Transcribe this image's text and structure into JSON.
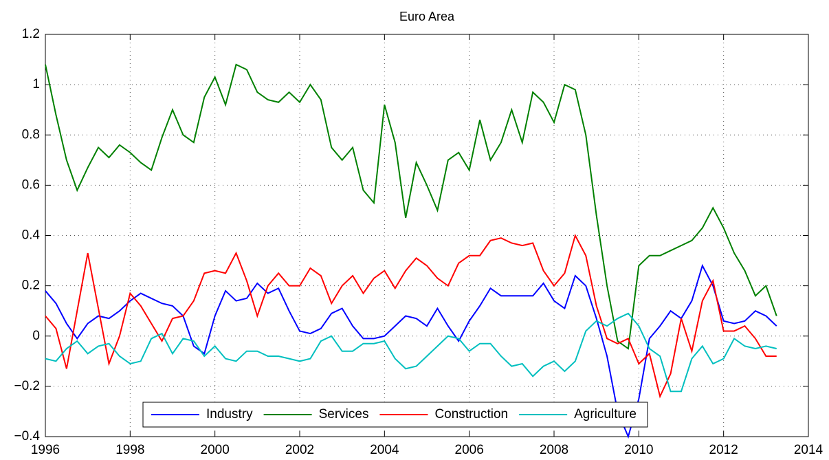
{
  "chart_data": {
    "type": "line",
    "title": "Euro Area",
    "x": [
      1996,
      1996.25,
      1996.5,
      1996.75,
      1997,
      1997.25,
      1997.5,
      1997.75,
      1998,
      1998.25,
      1998.5,
      1998.75,
      1999,
      1999.25,
      1999.5,
      1999.75,
      2000,
      2000.25,
      2000.5,
      2000.75,
      2001,
      2001.25,
      2001.5,
      2001.75,
      2002,
      2002.25,
      2002.5,
      2002.75,
      2003,
      2003.25,
      2003.5,
      2003.75,
      2004,
      2004.25,
      2004.5,
      2004.75,
      2005,
      2005.25,
      2005.5,
      2005.75,
      2006,
      2006.25,
      2006.5,
      2006.75,
      2007,
      2007.25,
      2007.5,
      2007.75,
      2008,
      2008.25,
      2008.5,
      2008.75,
      2009,
      2009.25,
      2009.5,
      2009.75,
      2010,
      2010.25,
      2010.5,
      2010.75,
      2011,
      2011.25,
      2011.5,
      2011.75,
      2012,
      2012.25,
      2012.5,
      2012.75,
      2013,
      2013.25
    ],
    "series": [
      {
        "name": "Industry",
        "color": "#0000ff",
        "values": [
          0.18,
          0.13,
          0.05,
          -0.01,
          0.05,
          0.08,
          0.07,
          0.1,
          0.14,
          0.17,
          0.15,
          0.13,
          0.12,
          0.08,
          -0.04,
          -0.07,
          0.08,
          0.18,
          0.14,
          0.15,
          0.21,
          0.17,
          0.19,
          0.1,
          0.02,
          0.01,
          0.03,
          0.09,
          0.11,
          0.04,
          -0.01,
          -0.01,
          0.0,
          0.04,
          0.08,
          0.07,
          0.04,
          0.11,
          0.04,
          -0.02,
          0.06,
          0.12,
          0.19,
          0.16,
          0.16,
          0.16,
          0.16,
          0.21,
          0.14,
          0.11,
          0.24,
          0.2,
          0.07,
          -0.08,
          -0.3,
          -0.4,
          -0.25,
          -0.01,
          0.04,
          0.1,
          0.07,
          0.14,
          0.28,
          0.2,
          0.06,
          0.05,
          0.06,
          0.1,
          0.08,
          0.04
        ]
      },
      {
        "name": "Services",
        "color": "#008000",
        "values": [
          1.08,
          0.88,
          0.7,
          0.58,
          0.67,
          0.75,
          0.71,
          0.76,
          0.73,
          0.69,
          0.66,
          0.79,
          0.9,
          0.8,
          0.77,
          0.95,
          1.03,
          0.92,
          1.08,
          1.06,
          0.97,
          0.94,
          0.93,
          0.97,
          0.93,
          1.0,
          0.94,
          0.75,
          0.7,
          0.75,
          0.58,
          0.53,
          0.92,
          0.77,
          0.47,
          0.69,
          0.6,
          0.5,
          0.7,
          0.73,
          0.66,
          0.86,
          0.7,
          0.77,
          0.9,
          0.77,
          0.97,
          0.93,
          0.85,
          1.0,
          0.98,
          0.8,
          0.48,
          0.2,
          -0.02,
          -0.05,
          0.28,
          0.32,
          0.32,
          0.34,
          0.36,
          0.38,
          0.43,
          0.51,
          0.43,
          0.33,
          0.26,
          0.16,
          0.2,
          0.08
        ]
      },
      {
        "name": "Construction",
        "color": "#ff0000",
        "values": [
          0.08,
          0.03,
          -0.13,
          0.1,
          0.33,
          0.11,
          -0.11,
          0.0,
          0.17,
          0.12,
          0.05,
          -0.02,
          0.07,
          0.08,
          0.14,
          0.25,
          0.26,
          0.25,
          0.33,
          0.22,
          0.08,
          0.2,
          0.25,
          0.2,
          0.2,
          0.27,
          0.24,
          0.13,
          0.2,
          0.24,
          0.17,
          0.23,
          0.26,
          0.19,
          0.26,
          0.31,
          0.28,
          0.23,
          0.2,
          0.29,
          0.32,
          0.32,
          0.38,
          0.39,
          0.37,
          0.36,
          0.37,
          0.26,
          0.2,
          0.25,
          0.4,
          0.32,
          0.12,
          -0.01,
          -0.03,
          -0.01,
          -0.11,
          -0.07,
          -0.24,
          -0.15,
          0.07,
          -0.06,
          0.14,
          0.22,
          0.02,
          0.02,
          0.04,
          -0.01,
          -0.08,
          -0.08
        ]
      },
      {
        "name": "Agriculture",
        "color": "#00bfbf",
        "values": [
          -0.09,
          -0.1,
          -0.05,
          -0.02,
          -0.07,
          -0.04,
          -0.03,
          -0.08,
          -0.11,
          -0.1,
          -0.01,
          0.01,
          -0.07,
          -0.01,
          -0.02,
          -0.08,
          -0.04,
          -0.09,
          -0.1,
          -0.06,
          -0.06,
          -0.08,
          -0.08,
          -0.09,
          -0.1,
          -0.09,
          -0.02,
          0.0,
          -0.06,
          -0.06,
          -0.03,
          -0.03,
          -0.02,
          -0.09,
          -0.13,
          -0.12,
          -0.08,
          -0.04,
          0.0,
          -0.01,
          -0.06,
          -0.03,
          -0.03,
          -0.08,
          -0.12,
          -0.11,
          -0.16,
          -0.12,
          -0.1,
          -0.14,
          -0.1,
          0.02,
          0.06,
          0.04,
          0.07,
          0.09,
          0.04,
          -0.05,
          -0.08,
          -0.22,
          -0.22,
          -0.09,
          -0.04,
          -0.11,
          -0.09,
          -0.01,
          -0.04,
          -0.05,
          -0.04,
          -0.05
        ]
      }
    ],
    "xlim": [
      1996,
      2014
    ],
    "xticks": [
      1996,
      1998,
      2000,
      2002,
      2004,
      2006,
      2008,
      2010,
      2012,
      2014
    ],
    "ylim": [
      -0.4,
      1.2
    ],
    "yticks": [
      {
        "value": -0.4,
        "label": "−0.4"
      },
      {
        "value": -0.2,
        "label": "−0.2"
      },
      0,
      0.2,
      0.4,
      0.6,
      0.8,
      1,
      1.2
    ],
    "grid": true,
    "legend": "bottom"
  }
}
